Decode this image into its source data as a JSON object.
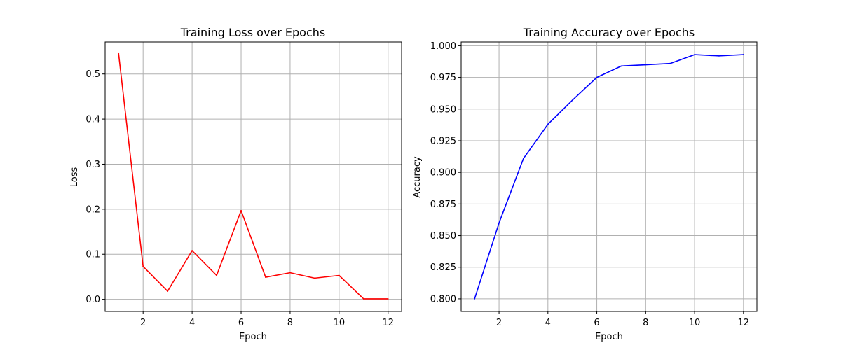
{
  "chart_data": [
    {
      "type": "line",
      "title": "Training Loss over Epochs",
      "xlabel": "Epoch",
      "ylabel": "Loss",
      "xlim": [
        0.45,
        12.55
      ],
      "ylim": [
        -0.027,
        0.571
      ],
      "xticks": [
        2,
        4,
        6,
        8,
        10,
        12
      ],
      "yticks": [
        0.0,
        0.1,
        0.2,
        0.3,
        0.4,
        0.5
      ],
      "ytick_decimals": 1,
      "grid": true,
      "x": [
        1,
        2,
        3,
        4,
        5,
        6,
        7,
        8,
        9,
        10,
        11,
        12
      ],
      "series": [
        {
          "color": "#ff0000",
          "values": [
            0.545,
            0.073,
            0.018,
            0.108,
            0.053,
            0.197,
            0.049,
            0.059,
            0.047,
            0.053,
            0.001,
            0.001
          ]
        }
      ]
    },
    {
      "type": "line",
      "title": "Training Accuracy over Epochs",
      "xlabel": "Epoch",
      "ylabel": "Accuracy",
      "xlim": [
        0.45,
        12.55
      ],
      "ylim": [
        0.79,
        1.003
      ],
      "xticks": [
        2,
        4,
        6,
        8,
        10,
        12
      ],
      "yticks": [
        0.8,
        0.825,
        0.85,
        0.875,
        0.9,
        0.925,
        0.95,
        0.975,
        1.0
      ],
      "ytick_decimals": 3,
      "grid": true,
      "x": [
        1,
        2,
        3,
        4,
        5,
        6,
        7,
        8,
        9,
        10,
        11,
        12
      ],
      "series": [
        {
          "color": "#0000ff",
          "values": [
            0.8,
            0.86,
            0.911,
            0.938,
            0.957,
            0.975,
            0.984,
            0.985,
            0.986,
            0.993,
            0.992,
            0.993
          ]
        }
      ]
    }
  ]
}
